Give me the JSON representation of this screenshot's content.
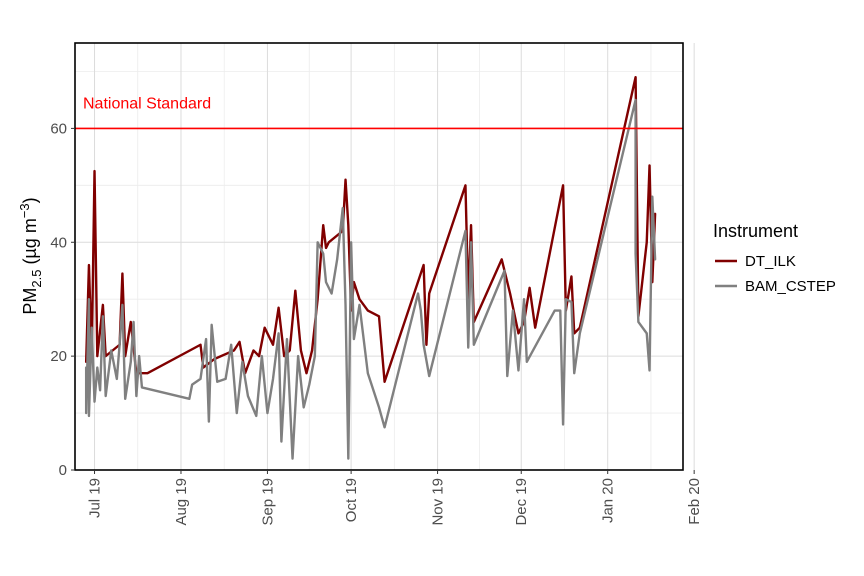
{
  "chart_data": {
    "type": "line",
    "title": "",
    "xlabel": "",
    "ylabel": {
      "base": "PM",
      "sub": "2.5",
      "units_pre": " (",
      "units": "µg m",
      "units_sup": "−3",
      "units_post": ")"
    },
    "xlim": [
      "2019-07-10",
      "2020-02-13"
    ],
    "ylim": [
      0,
      75
    ],
    "grid": true,
    "x_ticks": [
      {
        "date": "2019-07-17",
        "label": "Jul 19"
      },
      {
        "date": "2019-08-17",
        "label": "Aug 19"
      },
      {
        "date": "2019-09-17",
        "label": "Sep 19"
      },
      {
        "date": "2019-10-17",
        "label": "Oct 19"
      },
      {
        "date": "2019-11-17",
        "label": "Nov 19"
      },
      {
        "date": "2019-12-17",
        "label": "Dec 19"
      },
      {
        "date": "2020-01-17",
        "label": "Jan 20"
      },
      {
        "date": "2020-02-17",
        "label": "Feb 20"
      }
    ],
    "y_ticks": [
      0,
      20,
      40,
      60
    ],
    "reference_line": {
      "y": 60,
      "label": "National Standard",
      "color": "#ff0000"
    },
    "legend": {
      "title": "Instrument",
      "position": "right"
    },
    "series": [
      {
        "name": "DT_ILK",
        "color": "#800000",
        "points": [
          [
            "2019-07-14",
            19
          ],
          [
            "2019-07-15",
            36
          ],
          [
            "2019-07-16",
            20
          ],
          [
            "2019-07-17",
            52.5
          ],
          [
            "2019-07-18",
            20
          ],
          [
            "2019-07-20",
            29
          ],
          [
            "2019-07-21",
            20
          ],
          [
            "2019-07-26",
            22
          ],
          [
            "2019-07-27",
            34.5
          ],
          [
            "2019-07-28",
            20
          ],
          [
            "2019-07-30",
            26
          ],
          [
            "2019-08-01",
            17
          ],
          [
            "2019-08-05",
            17
          ],
          [
            "2019-08-24",
            22
          ],
          [
            "2019-08-25",
            18
          ],
          [
            "2019-08-29",
            19.5
          ],
          [
            "2019-09-05",
            21
          ],
          [
            "2019-09-07",
            22.5
          ],
          [
            "2019-09-09",
            17
          ],
          [
            "2019-09-12",
            21
          ],
          [
            "2019-09-14",
            20
          ],
          [
            "2019-09-16",
            25
          ],
          [
            "2019-09-19",
            22
          ],
          [
            "2019-09-21",
            28.5
          ],
          [
            "2019-09-23",
            20
          ],
          [
            "2019-09-25",
            21
          ],
          [
            "2019-09-27",
            31.5
          ],
          [
            "2019-09-29",
            21
          ],
          [
            "2019-10-01",
            17
          ],
          [
            "2019-10-03",
            21
          ],
          [
            "2019-10-05",
            30
          ],
          [
            "2019-10-07",
            43
          ],
          [
            "2019-10-08",
            39
          ],
          [
            "2019-10-09",
            40
          ],
          [
            "2019-10-14",
            42
          ],
          [
            "2019-10-15",
            51
          ],
          [
            "2019-10-16",
            43
          ],
          [
            "2019-10-17",
            28
          ],
          [
            "2019-10-18",
            33
          ],
          [
            "2019-10-20",
            30
          ],
          [
            "2019-10-23",
            28
          ],
          [
            "2019-10-27",
            27
          ],
          [
            "2019-10-29",
            15.5
          ],
          [
            "2019-11-12",
            36
          ],
          [
            "2019-11-13",
            22
          ],
          [
            "2019-11-14",
            31
          ],
          [
            "2019-11-27",
            50
          ],
          [
            "2019-11-28",
            30
          ],
          [
            "2019-11-29",
            43
          ],
          [
            "2019-11-30",
            26
          ],
          [
            "2019-12-10",
            37
          ],
          [
            "2019-12-13",
            31
          ],
          [
            "2019-12-16",
            24
          ],
          [
            "2019-12-18",
            26
          ],
          [
            "2019-12-20",
            32
          ],
          [
            "2019-12-22",
            25
          ],
          [
            "2020-01-01",
            50
          ],
          [
            "2020-01-02",
            28
          ],
          [
            "2020-01-04",
            34
          ],
          [
            "2020-01-05",
            24
          ],
          [
            "2020-01-07",
            25
          ],
          [
            "2020-01-27",
            69
          ],
          [
            "2020-01-28",
            27
          ],
          [
            "2020-01-31",
            40
          ],
          [
            "2020-02-01",
            53.5
          ],
          [
            "2020-02-02",
            33
          ],
          [
            "2020-02-03",
            45
          ]
        ]
      },
      {
        "name": "BAM_CSTEP",
        "color": "#808080",
        "points": [
          [
            "2019-07-14",
            18
          ],
          [
            "2019-07-14",
            10
          ],
          [
            "2019-07-15",
            30
          ],
          [
            "2019-07-15",
            9.5
          ],
          [
            "2019-07-16",
            25
          ],
          [
            "2019-07-17",
            12
          ],
          [
            "2019-07-18",
            18
          ],
          [
            "2019-07-19",
            14
          ],
          [
            "2019-07-20",
            27
          ],
          [
            "2019-07-21",
            13
          ],
          [
            "2019-07-23",
            21
          ],
          [
            "2019-07-25",
            16
          ],
          [
            "2019-07-26",
            22
          ],
          [
            "2019-07-27",
            29
          ],
          [
            "2019-07-28",
            12.5
          ],
          [
            "2019-07-30",
            19
          ],
          [
            "2019-07-31",
            26
          ],
          [
            "2019-08-01",
            13
          ],
          [
            "2019-08-02",
            20
          ],
          [
            "2019-08-03",
            14.5
          ],
          [
            "2019-08-20",
            12.5
          ],
          [
            "2019-08-21",
            15
          ],
          [
            "2019-08-24",
            16
          ],
          [
            "2019-08-26",
            23
          ],
          [
            "2019-08-27",
            8.5
          ],
          [
            "2019-08-28",
            25.5
          ],
          [
            "2019-08-30",
            15.5
          ],
          [
            "2019-09-02",
            16
          ],
          [
            "2019-09-04",
            22
          ],
          [
            "2019-09-06",
            10
          ],
          [
            "2019-09-08",
            19
          ],
          [
            "2019-09-10",
            13
          ],
          [
            "2019-09-13",
            9.5
          ],
          [
            "2019-09-15",
            20
          ],
          [
            "2019-09-17",
            10
          ],
          [
            "2019-09-19",
            16
          ],
          [
            "2019-09-21",
            24
          ],
          [
            "2019-09-22",
            5
          ],
          [
            "2019-09-24",
            23
          ],
          [
            "2019-09-26",
            2
          ],
          [
            "2019-09-28",
            20
          ],
          [
            "2019-09-30",
            11
          ],
          [
            "2019-10-02",
            15
          ],
          [
            "2019-10-04",
            20
          ],
          [
            "2019-10-05",
            40
          ],
          [
            "2019-10-07",
            38
          ],
          [
            "2019-10-08",
            33
          ],
          [
            "2019-10-10",
            31
          ],
          [
            "2019-10-12",
            37
          ],
          [
            "2019-10-14",
            46
          ],
          [
            "2019-10-15",
            29
          ],
          [
            "2019-10-16",
            2
          ],
          [
            "2019-10-17",
            40
          ],
          [
            "2019-10-18",
            23
          ],
          [
            "2019-10-20",
            29
          ],
          [
            "2019-10-23",
            17
          ],
          [
            "2019-10-27",
            11
          ],
          [
            "2019-10-29",
            7.5
          ],
          [
            "2019-11-10",
            31
          ],
          [
            "2019-11-11",
            28
          ],
          [
            "2019-11-12",
            22
          ],
          [
            "2019-11-14",
            16.5
          ],
          [
            "2019-11-27",
            42
          ],
          [
            "2019-11-28",
            21.5
          ],
          [
            "2019-11-29",
            40
          ],
          [
            "2019-11-30",
            22
          ],
          [
            "2019-12-11",
            35
          ],
          [
            "2019-12-12",
            16.5
          ],
          [
            "2019-12-14",
            28
          ],
          [
            "2019-12-16",
            17.5
          ],
          [
            "2019-12-18",
            30
          ],
          [
            "2019-12-19",
            19
          ],
          [
            "2019-12-29",
            28
          ],
          [
            "2019-12-31",
            28
          ],
          [
            "2020-01-01",
            8
          ],
          [
            "2020-01-02",
            30
          ],
          [
            "2020-01-04",
            29.5
          ],
          [
            "2020-01-05",
            17
          ],
          [
            "2020-01-07",
            24
          ],
          [
            "2020-01-27",
            65
          ],
          [
            "2020-01-27",
            38
          ],
          [
            "2020-01-28",
            26
          ],
          [
            "2020-01-31",
            24
          ],
          [
            "2020-02-01",
            17.5
          ],
          [
            "2020-02-02",
            48
          ],
          [
            "2020-02-03",
            37
          ]
        ]
      }
    ]
  }
}
